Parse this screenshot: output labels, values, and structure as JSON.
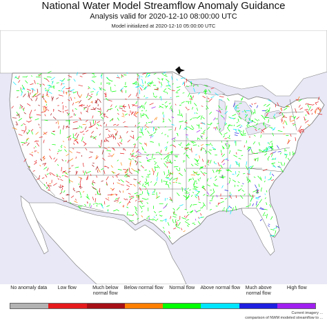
{
  "header": {
    "title": "National Water Model Streamflow Anomaly Guidance",
    "subtitle": "Analysis valid for 2020-12-10 08:00:00 UTC",
    "init_line": "Model initialized at 2020-12-10 05:00:00 UTC"
  },
  "legend": {
    "items": [
      {
        "label": "No anomaly data",
        "color": "#b3b3b3"
      },
      {
        "label": "Low flow",
        "color": "#e41a1c"
      },
      {
        "label": "Much below normal flow",
        "color": "#a50f15"
      },
      {
        "label": "Below normal flow",
        "color": "#ff7f00"
      },
      {
        "label": "Normal flow",
        "color": "#00ff00"
      },
      {
        "label": "Above normal flow",
        "color": "#00e5ff"
      },
      {
        "label": "Much above normal flow",
        "color": "#1f1fe0"
      },
      {
        "label": "High flow",
        "color": "#a020f0"
      }
    ]
  },
  "credit": {
    "line1": "Current imagery ...",
    "line2": "comparison of NWM modeled streamflow to ..."
  },
  "colors": {
    "land": "#ffffff",
    "water": "#e8e8f6",
    "border": "#555555",
    "text": "#111111"
  }
}
